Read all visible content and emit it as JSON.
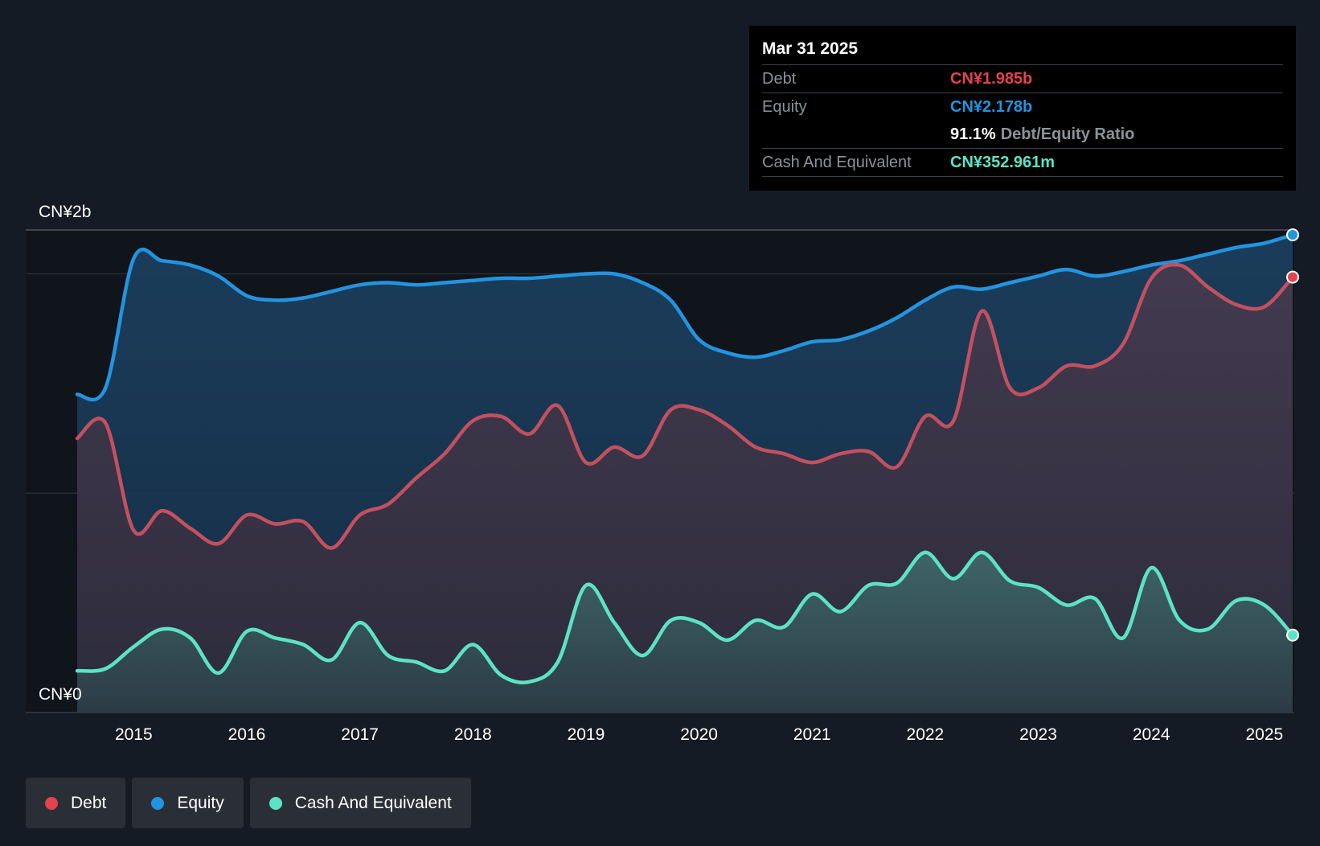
{
  "chart_data": {
    "type": "area",
    "title": "",
    "xlabel": "",
    "ylabel": "",
    "y_axis_labels": {
      "top": "CN¥2b",
      "bottom": "CN¥0"
    },
    "ylim": [
      0,
      2.2
    ],
    "xlim": [
      2014.5,
      2025.25
    ],
    "x_ticks": [
      "2015",
      "2016",
      "2017",
      "2018",
      "2019",
      "2020",
      "2021",
      "2022",
      "2023",
      "2024",
      "2025"
    ],
    "series": [
      {
        "name": "Debt",
        "color": "#e2434f",
        "line_color": "#c4505f",
        "x": [
          2014.5,
          2014.75,
          2015.0,
          2015.25,
          2015.5,
          2015.75,
          2016.0,
          2016.25,
          2016.5,
          2016.75,
          2017.0,
          2017.25,
          2017.5,
          2017.75,
          2018.0,
          2018.25,
          2018.5,
          2018.75,
          2019.0,
          2019.25,
          2019.5,
          2019.75,
          2020.0,
          2020.25,
          2020.5,
          2020.75,
          2021.0,
          2021.25,
          2021.5,
          2021.75,
          2022.0,
          2022.25,
          2022.5,
          2022.75,
          2023.0,
          2023.25,
          2023.5,
          2023.75,
          2024.0,
          2024.25,
          2024.5,
          2024.75,
          2025.0,
          2025.25
        ],
        "values": [
          1.25,
          1.32,
          0.83,
          0.92,
          0.84,
          0.77,
          0.9,
          0.86,
          0.87,
          0.75,
          0.9,
          0.95,
          1.07,
          1.18,
          1.33,
          1.35,
          1.27,
          1.4,
          1.14,
          1.21,
          1.17,
          1.38,
          1.38,
          1.31,
          1.21,
          1.18,
          1.14,
          1.18,
          1.19,
          1.12,
          1.35,
          1.33,
          1.83,
          1.48,
          1.48,
          1.58,
          1.58,
          1.68,
          1.98,
          2.04,
          1.94,
          1.86,
          1.85,
          1.985
        ]
      },
      {
        "name": "Equity",
        "color": "#2394df",
        "line_color": "#2394df",
        "x": [
          2014.5,
          2014.75,
          2015.0,
          2015.25,
          2015.5,
          2015.75,
          2016.0,
          2016.25,
          2016.5,
          2016.75,
          2017.0,
          2017.25,
          2017.5,
          2017.75,
          2018.0,
          2018.25,
          2018.5,
          2018.75,
          2019.0,
          2019.25,
          2019.5,
          2019.75,
          2020.0,
          2020.25,
          2020.5,
          2020.75,
          2021.0,
          2021.25,
          2021.5,
          2021.75,
          2022.0,
          2022.25,
          2022.5,
          2022.75,
          2023.0,
          2023.25,
          2023.5,
          2023.75,
          2024.0,
          2024.25,
          2024.5,
          2024.75,
          2025.0,
          2025.25
        ],
        "values": [
          1.45,
          1.48,
          2.07,
          2.06,
          2.04,
          1.99,
          1.9,
          1.88,
          1.89,
          1.92,
          1.95,
          1.96,
          1.95,
          1.96,
          1.97,
          1.98,
          1.98,
          1.99,
          2.0,
          2.0,
          1.96,
          1.88,
          1.7,
          1.64,
          1.62,
          1.65,
          1.69,
          1.7,
          1.74,
          1.8,
          1.88,
          1.94,
          1.93,
          1.96,
          1.99,
          2.02,
          1.99,
          2.01,
          2.04,
          2.06,
          2.09,
          2.12,
          2.14,
          2.178
        ]
      },
      {
        "name": "Cash And Equivalent",
        "color": "#5ce3c6",
        "line_color": "#5ce3c6",
        "x": [
          2014.5,
          2014.75,
          2015.0,
          2015.25,
          2015.5,
          2015.75,
          2016.0,
          2016.25,
          2016.5,
          2016.75,
          2017.0,
          2017.25,
          2017.5,
          2017.75,
          2018.0,
          2018.25,
          2018.5,
          2018.75,
          2019.0,
          2019.25,
          2019.5,
          2019.75,
          2020.0,
          2020.25,
          2020.5,
          2020.75,
          2021.0,
          2021.25,
          2021.5,
          2021.75,
          2022.0,
          2022.25,
          2022.5,
          2022.75,
          2023.0,
          2023.25,
          2023.5,
          2023.75,
          2024.0,
          2024.25,
          2024.5,
          2024.75,
          2025.0,
          2025.25
        ],
        "values": [
          0.19,
          0.2,
          0.3,
          0.38,
          0.34,
          0.18,
          0.37,
          0.34,
          0.31,
          0.24,
          0.41,
          0.26,
          0.23,
          0.19,
          0.31,
          0.17,
          0.14,
          0.23,
          0.58,
          0.41,
          0.26,
          0.42,
          0.41,
          0.33,
          0.42,
          0.39,
          0.54,
          0.46,
          0.58,
          0.59,
          0.73,
          0.61,
          0.73,
          0.6,
          0.57,
          0.49,
          0.52,
          0.34,
          0.66,
          0.42,
          0.38,
          0.51,
          0.49,
          0.353
        ]
      }
    ],
    "legend": [
      {
        "name": "Debt",
        "color": "#e2434f"
      },
      {
        "name": "Equity",
        "color": "#2394df"
      },
      {
        "name": "Cash And Equivalent",
        "color": "#5ce3c6"
      }
    ],
    "tooltip": {
      "date": "Mar 31 2025",
      "debt_label": "Debt",
      "debt_value": "CN¥1.985b",
      "equity_label": "Equity",
      "equity_value": "CN¥2.178b",
      "ratio_value": "91.1%",
      "ratio_label": "Debt/Equity Ratio",
      "cash_label": "Cash And Equivalent",
      "cash_value": "CN¥352.961m"
    }
  }
}
